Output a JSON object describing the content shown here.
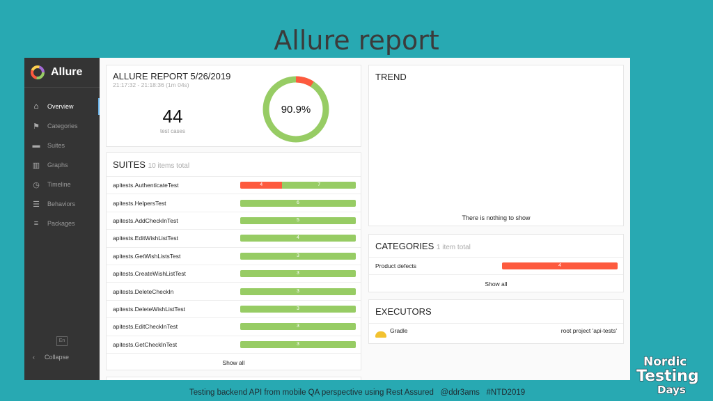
{
  "slide": {
    "title": "Allure report",
    "footer": "Testing backend API from mobile QA perspective using Rest Assured   @ddr3ams   #NTD2019",
    "logo_text": "Nordic Testing Days 2019"
  },
  "sidebar": {
    "brand": "Allure",
    "items": [
      {
        "label": "Overview",
        "icon": "home-icon",
        "active": true
      },
      {
        "label": "Categories",
        "icon": "flag-icon"
      },
      {
        "label": "Suites",
        "icon": "briefcase-icon"
      },
      {
        "label": "Graphs",
        "icon": "bar-chart-icon"
      },
      {
        "label": "Timeline",
        "icon": "clock-icon"
      },
      {
        "label": "Behaviors",
        "icon": "list-icon"
      },
      {
        "label": "Packages",
        "icon": "align-left-icon"
      }
    ],
    "language": "En",
    "collapse": "Collapse"
  },
  "summary": {
    "title": "ALLURE REPORT 5/26/2019",
    "time": "21:17:32 - 21:18:36 (1m 04s)",
    "count": "44",
    "count_label": "test cases",
    "percent": "90.9%",
    "pass_fraction": 0.909
  },
  "suites": {
    "title": "SUITES",
    "subtitle": "10 items total",
    "show_all": "Show all",
    "rows": [
      {
        "name": "apitests.AuthenticateTest",
        "failed": 4,
        "passed": 7
      },
      {
        "name": "apitests.HelpersTest",
        "failed": 0,
        "passed": 6
      },
      {
        "name": "apitests.AddCheckInTest",
        "failed": 0,
        "passed": 5
      },
      {
        "name": "apitests.EditWishListTest",
        "failed": 0,
        "passed": 4
      },
      {
        "name": "apitests.GetWishListsTest",
        "failed": 0,
        "passed": 3
      },
      {
        "name": "apitests.CreateWishListTest",
        "failed": 0,
        "passed": 3
      },
      {
        "name": "apitests.DeleteCheckIn",
        "failed": 0,
        "passed": 3
      },
      {
        "name": "apitests.DeleteWishListTest",
        "failed": 0,
        "passed": 3
      },
      {
        "name": "apitests.EditCheckInTest",
        "failed": 0,
        "passed": 3
      },
      {
        "name": "apitests.GetCheckInTest",
        "failed": 0,
        "passed": 3
      }
    ]
  },
  "trend": {
    "title": "TREND",
    "empty": "There is nothing to show"
  },
  "categories": {
    "title": "CATEGORIES",
    "subtitle": "1 item total",
    "show_all": "Show all",
    "rows": [
      {
        "name": "Product defects",
        "count": "4"
      }
    ]
  },
  "executors": {
    "title": "EXECUTORS",
    "rows": [
      {
        "name": "Gradle",
        "icon": "hardhat-icon",
        "detail": "root project 'api-tests'"
      }
    ]
  },
  "colors": {
    "passed": "#97cc64",
    "failed": "#fd5a3e",
    "sidebar": "#343434",
    "slide": "#28a9b2"
  }
}
